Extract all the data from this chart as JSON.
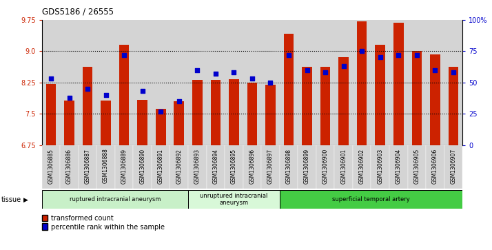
{
  "title": "GDS5186 / 26555",
  "samples": [
    "GSM1306885",
    "GSM1306886",
    "GSM1306887",
    "GSM1306888",
    "GSM1306889",
    "GSM1306890",
    "GSM1306891",
    "GSM1306892",
    "GSM1306893",
    "GSM1306894",
    "GSM1306895",
    "GSM1306896",
    "GSM1306897",
    "GSM1306898",
    "GSM1306899",
    "GSM1306900",
    "GSM1306901",
    "GSM1306902",
    "GSM1306903",
    "GSM1306904",
    "GSM1306905",
    "GSM1306906",
    "GSM1306907"
  ],
  "transformed_count": [
    8.22,
    7.82,
    8.62,
    7.82,
    9.16,
    7.83,
    7.62,
    7.8,
    8.32,
    8.32,
    8.33,
    8.25,
    8.19,
    9.42,
    8.62,
    8.62,
    8.85,
    9.72,
    9.15,
    9.68,
    9.0,
    8.93,
    8.62
  ],
  "percentile_rank": [
    53,
    38,
    45,
    40,
    72,
    43,
    27,
    35,
    60,
    57,
    58,
    53,
    50,
    72,
    60,
    58,
    63,
    75,
    70,
    72,
    72,
    60,
    58
  ],
  "ylim_left": [
    6.75,
    9.75
  ],
  "ylim_right": [
    0,
    100
  ],
  "yticks_left": [
    6.75,
    7.5,
    8.25,
    9.0,
    9.75
  ],
  "yticks_right": [
    0,
    25,
    50,
    75,
    100
  ],
  "ytick_labels_right": [
    "0",
    "25",
    "50",
    "75",
    "100%"
  ],
  "groups": [
    {
      "label": "ruptured intracranial aneurysm",
      "start": 0,
      "end": 8,
      "color": "#c8f0c8"
    },
    {
      "label": "unruptured intracranial\naneurysm",
      "start": 8,
      "end": 13,
      "color": "#d8f8d8"
    },
    {
      "label": "superficial temporal artery",
      "start": 13,
      "end": 23,
      "color": "#44cc44"
    }
  ],
  "bar_color": "#cc2200",
  "dot_color": "#0000cc",
  "xtick_bg": "#d4d4d4",
  "legend_bar_label": "transformed count",
  "legend_dot_label": "percentile rank within the sample"
}
